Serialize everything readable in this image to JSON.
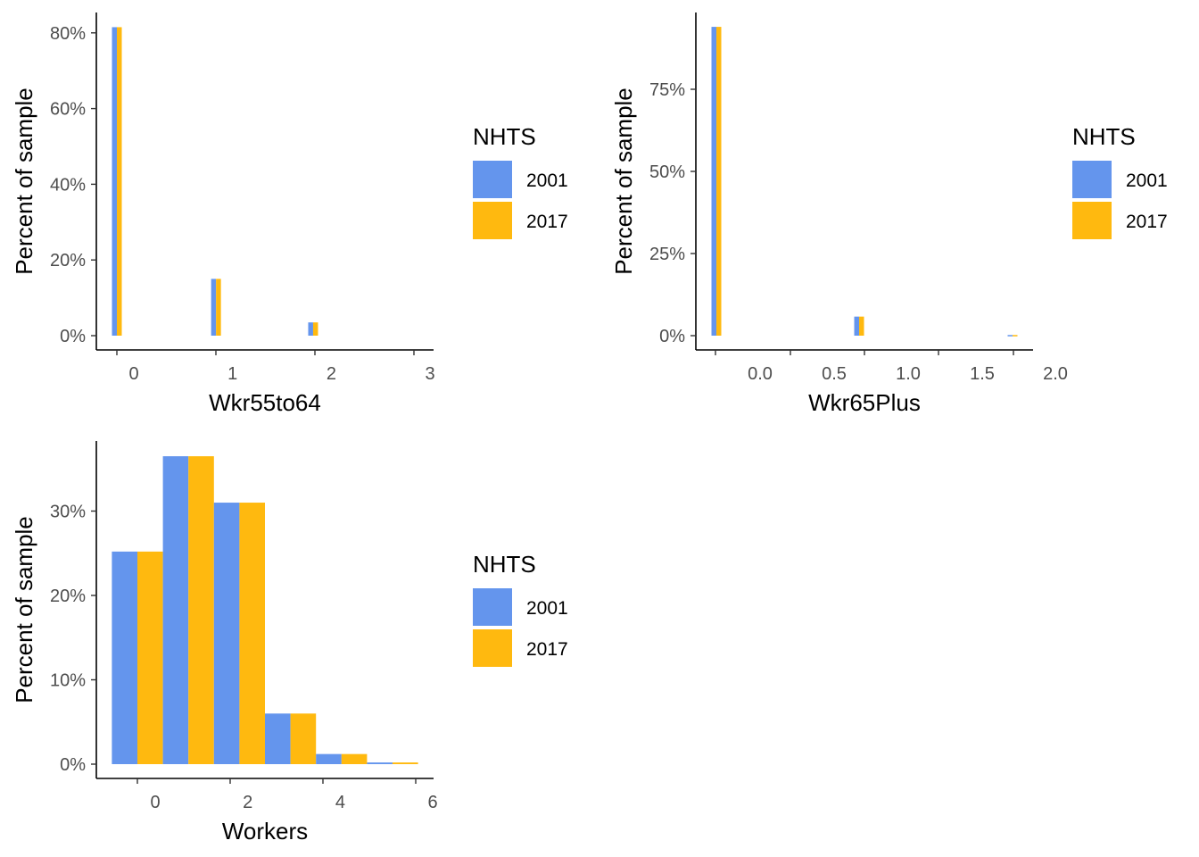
{
  "legend": {
    "title": "NHTS",
    "entries": [
      {
        "label": "2001",
        "color": "#6495ED"
      },
      {
        "label": "2017",
        "color": "#FFB90F"
      }
    ]
  },
  "chart_data": [
    {
      "type": "bar",
      "xlabel": "Wkr55to64",
      "ylabel": "Percent of sample",
      "x_ticks": [
        "0",
        "1",
        "2",
        "3"
      ],
      "y_ticks": [
        "0%",
        "20%",
        "40%",
        "60%",
        "80%"
      ],
      "ylim": [
        0,
        0.85
      ],
      "grid": false,
      "legend_position": "right",
      "categories": [
        0,
        1,
        2,
        3
      ],
      "series": [
        {
          "name": "2001",
          "color": "#6495ED",
          "values": [
            0.815,
            0.15,
            0.035,
            0.0
          ]
        },
        {
          "name": "2017",
          "color": "#FFB90F",
          "values": [
            0.815,
            0.15,
            0.035,
            0.0
          ]
        }
      ]
    },
    {
      "type": "bar",
      "xlabel": "Wkr65Plus",
      "ylabel": "Percent of sample",
      "x_ticks": [
        "0.0",
        "0.5",
        "1.0",
        "1.5",
        "2.0"
      ],
      "y_ticks": [
        "0%",
        "25%",
        "50%",
        "75%"
      ],
      "ylim": [
        0,
        0.96
      ],
      "grid": false,
      "legend_position": "right",
      "categories": [
        0,
        1,
        2
      ],
      "series": [
        {
          "name": "2001",
          "color": "#6495ED",
          "values": [
            0.94,
            0.058,
            0.002
          ]
        },
        {
          "name": "2017",
          "color": "#FFB90F",
          "values": [
            0.94,
            0.058,
            0.002
          ]
        }
      ]
    },
    {
      "type": "bar",
      "xlabel": "Workers",
      "ylabel": "Percent of sample",
      "x_ticks": [
        "0",
        "2",
        "4",
        "6"
      ],
      "y_ticks": [
        "0%",
        "10%",
        "20%",
        "30%"
      ],
      "ylim": [
        0,
        0.38
      ],
      "grid": false,
      "legend_position": "right",
      "categories": [
        0,
        1,
        2,
        3,
        4,
        5
      ],
      "series": [
        {
          "name": "2001",
          "color": "#6495ED",
          "values": [
            0.252,
            0.365,
            0.31,
            0.06,
            0.012,
            0.002
          ]
        },
        {
          "name": "2017",
          "color": "#FFB90F",
          "values": [
            0.252,
            0.365,
            0.31,
            0.06,
            0.012,
            0.002
          ]
        }
      ]
    }
  ]
}
